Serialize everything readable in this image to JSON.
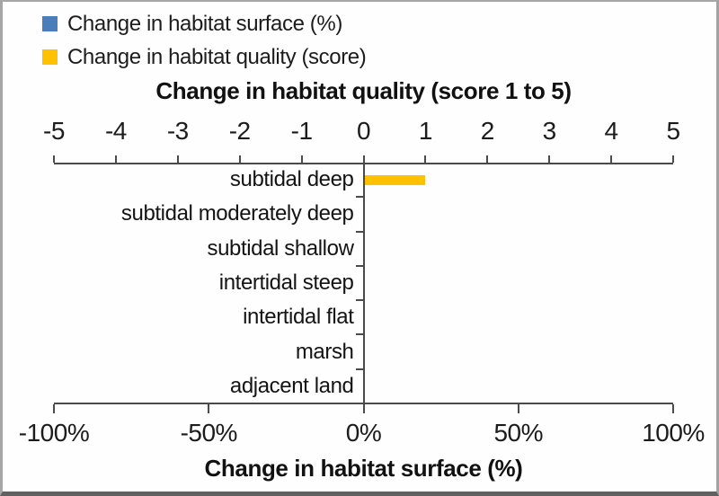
{
  "legend": {
    "items": [
      {
        "label": "Change in habitat surface (%)",
        "color": "#4a7ebb"
      },
      {
        "label": "Change in habitat quality (score)",
        "color": "#ffc000"
      }
    ]
  },
  "chart_data": {
    "type": "bar",
    "orientation": "horizontal",
    "grid": false,
    "legend_position": "top-left",
    "categories": [
      "subtidal deep",
      "subtidal moderately deep",
      "subtidal shallow",
      "intertidal steep",
      "intertidal flat",
      "marsh",
      "adjacent land"
    ],
    "series": [
      {
        "name": "Change in habitat surface (%)",
        "axis": "bottom",
        "color": "#4a7ebb",
        "values": [
          0,
          0,
          0,
          0,
          0,
          0,
          0
        ]
      },
      {
        "name": "Change in habitat quality (score)",
        "axis": "top",
        "color": "#ffc000",
        "values": [
          1,
          0,
          0,
          0,
          0,
          0,
          0
        ]
      }
    ],
    "top_axis": {
      "title": "Change in habitat quality (score 1 to 5)",
      "min": -5,
      "max": 5,
      "ticks": [
        -5,
        -4,
        -3,
        -2,
        -1,
        0,
        1,
        2,
        3,
        4,
        5
      ],
      "tick_labels": [
        "-5",
        "-4",
        "-3",
        "-2",
        "-1",
        "0",
        "1",
        "2",
        "3",
        "4",
        "5"
      ]
    },
    "bottom_axis": {
      "title": "Change in habitat surface (%)",
      "min": -100,
      "max": 100,
      "ticks": [
        -100,
        -50,
        0,
        50,
        100
      ],
      "tick_labels": [
        "-100%",
        "-50%",
        "0%",
        "50%",
        "100%"
      ]
    }
  }
}
